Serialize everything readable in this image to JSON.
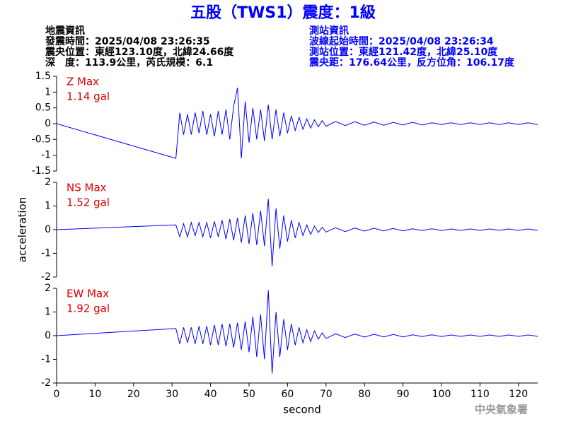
{
  "header": {
    "title": "五股（TWS1）震度：1級",
    "left": [
      "地震資訊",
      "發震時間：2025/04/08 23:26:35",
      "震央位置：東經123.10度，北緯24.66度",
      "深　度：113.9公里，芮氏規模：6.1"
    ],
    "right": [
      "測站資訊",
      "波線起始時間：2025/04/08 23:26:34",
      "測站位置：東經121.42度，北緯25.10度",
      "震央距：176.64公里，反方位角：106.17度"
    ]
  },
  "footer": {
    "watermark": "中央氣象署"
  },
  "chart_data": [
    {
      "type": "line",
      "annotation": [
        "Z Max",
        "1.14 gal"
      ],
      "color": "#0000ff",
      "x": [
        0,
        31,
        32,
        33,
        34,
        35,
        36,
        37,
        38,
        39,
        40,
        41,
        42,
        43,
        44,
        45,
        46,
        47,
        48,
        49,
        50,
        51,
        52,
        53,
        54,
        55,
        56,
        57,
        58,
        59,
        60,
        61,
        62,
        63,
        64,
        65,
        66,
        67,
        68,
        69,
        70,
        72.5,
        75,
        77.5,
        80,
        82.5,
        85,
        87.5,
        90,
        92.5,
        95,
        97.5,
        100,
        102.5,
        105,
        107.5,
        110,
        112.5,
        115,
        117.5,
        120,
        122.5,
        125
      ],
      "values": [
        0,
        -1.1,
        0.35,
        -0.35,
        0.3,
        -0.35,
        0.35,
        -0.3,
        0.4,
        -0.35,
        0.3,
        -0.4,
        0.4,
        -0.35,
        0.45,
        -0.5,
        0.55,
        1.14,
        -1.1,
        0.7,
        -0.6,
        0.5,
        -0.5,
        0.45,
        -0.55,
        0.6,
        -0.5,
        0.45,
        -0.4,
        0.35,
        -0.3,
        0.25,
        -0.22,
        0.2,
        -0.18,
        0.15,
        -0.14,
        0.12,
        -0.1,
        0.1,
        -0.08,
        0.07,
        -0.06,
        0.06,
        -0.05,
        0.05,
        -0.05,
        0.04,
        -0.04,
        0.04,
        -0.04,
        0.03,
        -0.03,
        0.03,
        -0.03,
        0.03,
        -0.03,
        0.03,
        -0.03,
        0.03,
        -0.03,
        0.03,
        -0.03
      ],
      "xlim": [
        0,
        125
      ],
      "ylim": [
        -1.5,
        1.5
      ],
      "yticks": [
        1.5,
        1,
        0.5,
        0,
        -0.5,
        -1,
        -1.5
      ]
    },
    {
      "type": "line",
      "annotation": [
        "NS Max",
        "1.52 gal"
      ],
      "color": "#0000ff",
      "ylabel": "acceleration",
      "x": [
        0,
        31,
        32,
        33,
        34,
        35,
        36,
        37,
        38,
        39,
        40,
        41,
        42,
        43,
        44,
        45,
        46,
        47,
        48,
        49,
        50,
        51,
        52,
        53,
        54,
        55,
        56,
        57,
        58,
        59,
        60,
        61,
        62,
        63,
        64,
        65,
        66,
        67,
        68,
        69,
        70,
        72.5,
        75,
        77.5,
        80,
        82.5,
        85,
        87.5,
        90,
        92.5,
        95,
        97.5,
        100,
        102.5,
        105,
        107.5,
        110,
        112.5,
        115,
        117.5,
        120,
        122.5,
        125
      ],
      "values": [
        0,
        0.2,
        -0.3,
        0.25,
        -0.3,
        0.3,
        -0.25,
        0.3,
        -0.3,
        0.3,
        -0.35,
        0.35,
        -0.3,
        0.4,
        -0.4,
        0.45,
        -0.45,
        0.5,
        -0.55,
        0.6,
        -0.6,
        0.7,
        -0.65,
        0.8,
        -0.7,
        1.3,
        -1.55,
        0.9,
        -0.8,
        0.6,
        -0.5,
        0.4,
        -0.35,
        0.3,
        -0.25,
        0.2,
        -0.2,
        0.15,
        -0.12,
        0.1,
        -0.1,
        0.08,
        -0.08,
        0.07,
        -0.06,
        0.06,
        -0.05,
        0.05,
        -0.05,
        0.04,
        -0.04,
        0.04,
        -0.04,
        0.03,
        -0.03,
        0.03,
        -0.03,
        0.03,
        -0.03,
        0.03,
        -0.03,
        0.03,
        -0.03
      ],
      "xlim": [
        0,
        125
      ],
      "ylim": [
        -2,
        2
      ],
      "yticks": [
        2,
        1,
        0,
        -1,
        -2
      ]
    },
    {
      "type": "line",
      "annotation": [
        "EW Max",
        "1.92 gal"
      ],
      "color": "#0000ff",
      "xlabel": "second",
      "x": [
        0,
        31,
        32,
        33,
        34,
        35,
        36,
        37,
        38,
        39,
        40,
        41,
        42,
        43,
        44,
        45,
        46,
        47,
        48,
        49,
        50,
        51,
        52,
        53,
        54,
        55,
        56,
        57,
        58,
        59,
        60,
        61,
        62,
        63,
        64,
        65,
        66,
        67,
        68,
        69,
        70,
        72.5,
        75,
        77.5,
        80,
        82.5,
        85,
        87.5,
        90,
        92.5,
        95,
        97.5,
        100,
        102.5,
        105,
        107.5,
        110,
        112.5,
        115,
        117.5,
        120,
        122.5,
        125
      ],
      "values": [
        0,
        0.3,
        -0.35,
        0.35,
        -0.3,
        0.35,
        -0.35,
        0.4,
        -0.35,
        0.4,
        -0.4,
        0.45,
        -0.4,
        0.5,
        -0.45,
        0.5,
        -0.5,
        0.55,
        -0.6,
        0.6,
        -0.7,
        0.8,
        -0.9,
        0.9,
        -1.0,
        1.92,
        -1.6,
        1.0,
        -0.9,
        0.7,
        -0.6,
        0.5,
        -0.4,
        0.35,
        -0.3,
        0.25,
        -0.25,
        0.2,
        -0.15,
        0.12,
        -0.12,
        0.08,
        -0.08,
        0.07,
        -0.06,
        0.06,
        -0.05,
        0.05,
        -0.05,
        0.04,
        -0.04,
        0.04,
        -0.04,
        0.03,
        -0.03,
        0.03,
        -0.03,
        0.03,
        -0.03,
        0.03,
        -0.03,
        0.03,
        -0.03
      ],
      "xlim": [
        0,
        125
      ],
      "ylim": [
        -2,
        2
      ],
      "yticks": [
        2,
        1,
        0,
        -1,
        -2
      ],
      "xticks": [
        0,
        10,
        20,
        30,
        40,
        50,
        60,
        70,
        80,
        90,
        100,
        110,
        120
      ]
    }
  ]
}
